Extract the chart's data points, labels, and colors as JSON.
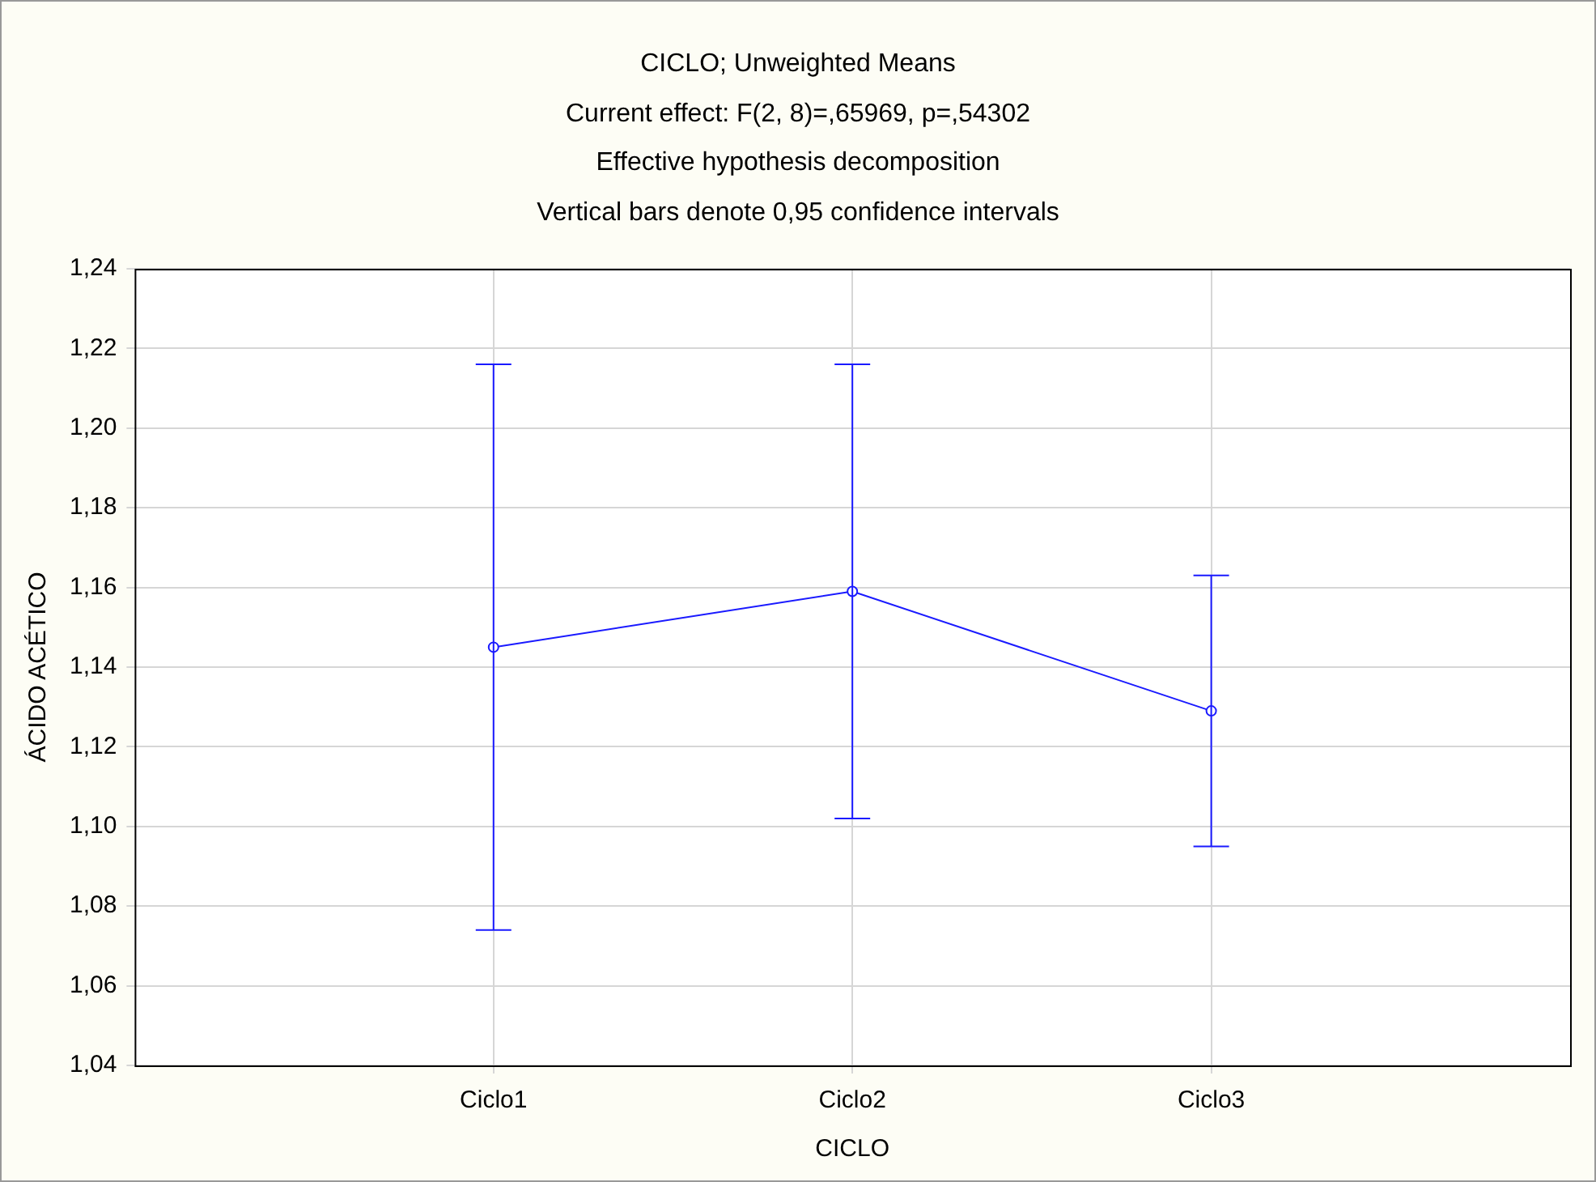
{
  "chart_data": {
    "type": "line",
    "title": "CICLO; Unweighted Means",
    "subtitle": "Current effect: F(2, 8)=,65969, p=,54302",
    "annotations": [
      "Effective hypothesis decomposition",
      "Vertical bars denote 0,95 confidence intervals"
    ],
    "xlabel": "CICLO",
    "ylabel": "ÁCIDO ACÉTICO",
    "categories": [
      "Ciclo1",
      "Ciclo2",
      "Ciclo3"
    ],
    "values": [
      1.145,
      1.159,
      1.129
    ],
    "errors": [
      0.071,
      0.057,
      0.034
    ],
    "color": "#1a1aff",
    "marker": "circle",
    "line_style": "solid",
    "grid": true,
    "legend": false,
    "ylim": [
      1.04,
      1.24
    ],
    "yticks": [
      {
        "value": 1.04,
        "label": "1,04"
      },
      {
        "value": 1.06,
        "label": "1,06"
      },
      {
        "value": 1.08,
        "label": "1,08"
      },
      {
        "value": 1.1,
        "label": "1,10"
      },
      {
        "value": 1.12,
        "label": "1,12"
      },
      {
        "value": 1.14,
        "label": "1,14"
      },
      {
        "value": 1.16,
        "label": "1,16"
      },
      {
        "value": 1.18,
        "label": "1,18"
      },
      {
        "value": 1.2,
        "label": "1,20"
      },
      {
        "value": 1.22,
        "label": "1,22"
      },
      {
        "value": 1.24,
        "label": "1,24"
      }
    ]
  }
}
